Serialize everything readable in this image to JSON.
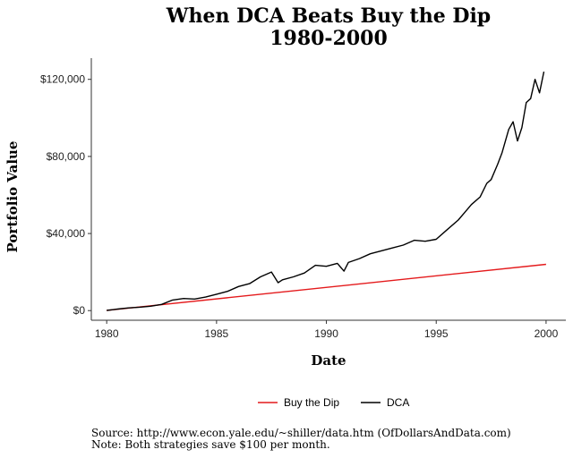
{
  "chart_data": {
    "type": "line",
    "title": "When DCA Beats Buy the Dip",
    "subtitle": "1980-2000",
    "xlabel": "Date",
    "ylabel": "Portfolio Value",
    "xlim": [
      1979.3,
      2000.9
    ],
    "ylim": [
      -5000,
      131000
    ],
    "x_ticks": [
      1980,
      1985,
      1990,
      1995,
      2000
    ],
    "x_tick_labels": [
      "1980",
      "1985",
      "1990",
      "1995",
      "2000"
    ],
    "y_ticks": [
      0,
      40000,
      80000,
      120000
    ],
    "y_tick_labels": [
      "$0",
      "$40,000",
      "$80,000",
      "$120,000"
    ],
    "grid": false,
    "legend_position": "bottom",
    "series": [
      {
        "name": "Buy the Dip",
        "color": "#e41a1c",
        "x": [
          1980,
          2000
        ],
        "y": [
          100,
          24000
        ]
      },
      {
        "name": "DCA",
        "color": "#000000",
        "x": [
          1980,
          1980.5,
          1981,
          1981.5,
          1982,
          1982.5,
          1983,
          1983.5,
          1984,
          1984.5,
          1985,
          1985.5,
          1986,
          1986.5,
          1987,
          1987.5,
          1987.8,
          1988,
          1988.5,
          1989,
          1989.5,
          1990,
          1990.5,
          1990.8,
          1991,
          1991.5,
          1992,
          1992.5,
          1993,
          1993.5,
          1994,
          1994.5,
          1995,
          1995.5,
          1996,
          1996.3,
          1996.6,
          1997,
          1997.3,
          1997.5,
          1997.8,
          1998,
          1998.3,
          1998.5,
          1998.7,
          1998.9,
          1999.1,
          1999.3,
          1999.5,
          1999.7,
          1999.9
        ],
        "y": [
          100,
          800,
          1400,
          1800,
          2300,
          3200,
          5500,
          6300,
          6000,
          7000,
          8500,
          10000,
          12500,
          14000,
          17500,
          20000,
          14500,
          16000,
          17500,
          19500,
          23500,
          23000,
          24500,
          20500,
          25000,
          27000,
          29500,
          31000,
          32500,
          34000,
          36500,
          36000,
          37000,
          42000,
          47000,
          51000,
          55000,
          59000,
          66000,
          68000,
          76000,
          82000,
          94000,
          98000,
          88000,
          95000,
          108000,
          110000,
          120000,
          113000,
          124000
        ]
      }
    ]
  },
  "footer": {
    "source": "Source:  http://www.econ.yale.edu/~shiller/data.htm (OfDollarsAndData.com)",
    "note": "Note: Both strategies save $100 per month."
  }
}
